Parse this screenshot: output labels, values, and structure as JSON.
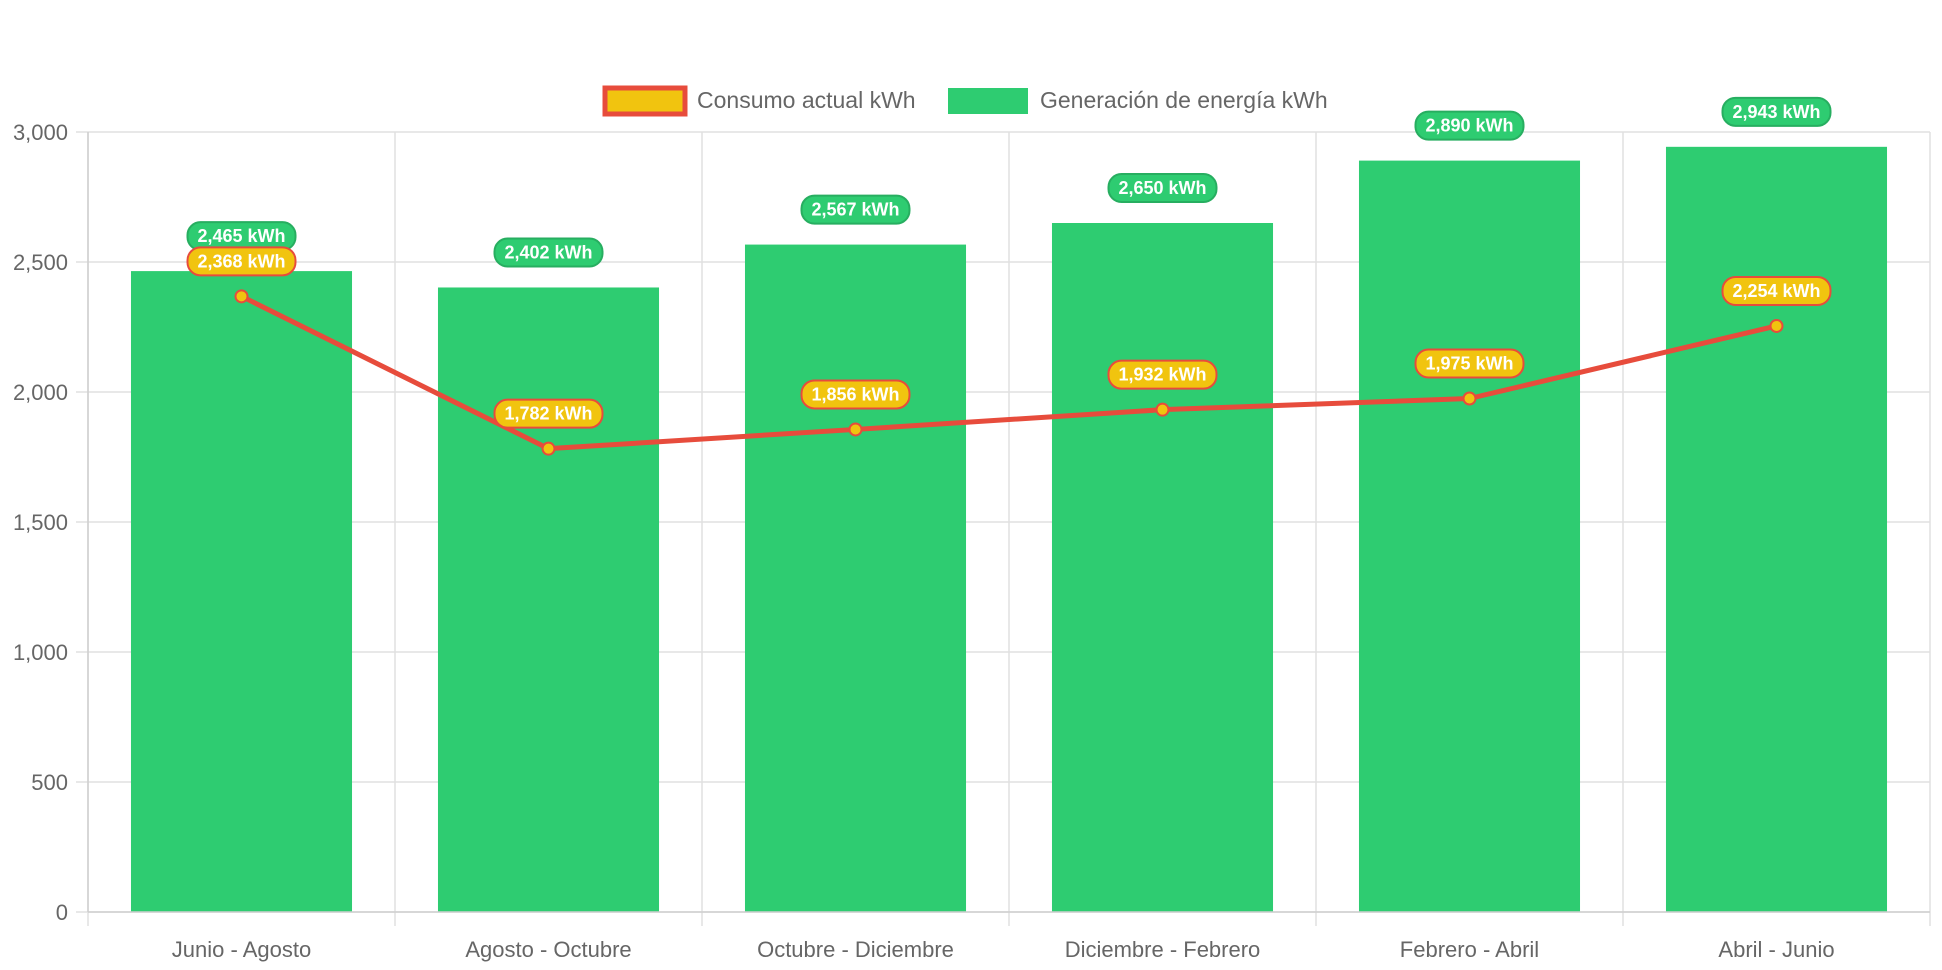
{
  "chart_data": {
    "type": "bar",
    "title": "",
    "xlabel": "",
    "ylabel": "",
    "ylim": [
      0,
      3000
    ],
    "y_ticks": [
      0,
      500,
      1000,
      1500,
      2000,
      2500,
      3000
    ],
    "y_tick_labels": [
      "0",
      "500",
      "1,000",
      "1,500",
      "2,000",
      "2,500",
      "3,000"
    ],
    "grid": true,
    "legend_position": "top",
    "categories": [
      "Junio - Agosto",
      "Agosto - Octubre",
      "Octubre - Diciembre",
      "Diciembre - Febrero",
      "Febrero - Abril",
      "Abril - Junio"
    ],
    "series": [
      {
        "name": "Consumo actual kWh",
        "type": "line",
        "color": "#e74c3c",
        "fill": "#f1c40f",
        "values": [
          2368,
          1782,
          1856,
          1932,
          1975,
          2254
        ],
        "labels": [
          "2,368 kWh",
          "1,782 kWh",
          "1,856 kWh",
          "1,932 kWh",
          "1,975 kWh",
          "2,254 kWh"
        ]
      },
      {
        "name": "Generación de energía kWh",
        "type": "bar",
        "color": "#2ecc71",
        "border": "#27ae60",
        "values": [
          2465,
          2402,
          2567,
          2650,
          2890,
          2943
        ],
        "labels": [
          "2,465 kWh",
          "2,402 kWh",
          "2,567 kWh",
          "2,650 kWh",
          "2,890 kWh",
          "2,943 kWh"
        ]
      }
    ]
  }
}
